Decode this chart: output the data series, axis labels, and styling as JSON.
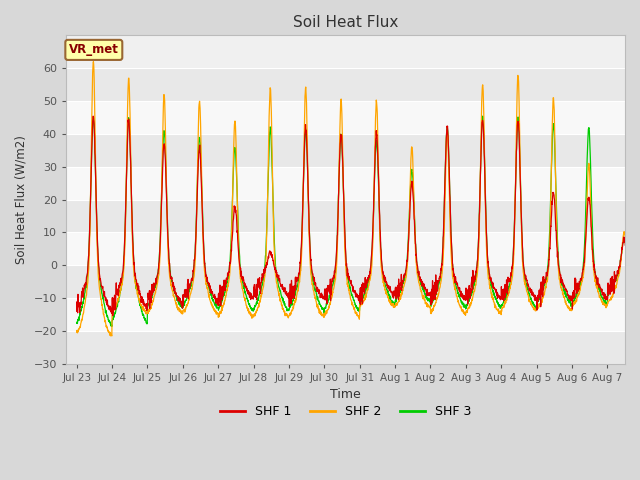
{
  "title": "Soil Heat Flux",
  "ylabel": "Soil Heat Flux (W/m2)",
  "xlabel": "Time",
  "ylim": [
    -30,
    70
  ],
  "yticks": [
    -30,
    -20,
    -10,
    0,
    10,
    20,
    30,
    40,
    50,
    60
  ],
  "figure_bg": "#d8d8d8",
  "plot_bg": "#f0f0f0",
  "grid_color": "#ffffff",
  "band_color1": "#e8e8e8",
  "band_color2": "#f8f8f8",
  "colors": {
    "SHF 1": "#dd0000",
    "SHF 2": "#ffa500",
    "SHF 3": "#00cc00"
  },
  "legend_label": "VR_met",
  "legend_box_facecolor": "#ffffaa",
  "legend_box_edgecolor": "#996633",
  "day_labels": [
    "Jul 23",
    "Jul 24",
    "Jul 25",
    "Jul 26",
    "Jul 27",
    "Jul 28",
    "Jul 29",
    "Jul 30",
    "Jul 31",
    "Aug 1",
    "Aug 2",
    "Aug 3",
    "Aug 4",
    "Aug 5",
    "Aug 6",
    "Aug 7"
  ],
  "shf2_peaks": [
    62,
    57,
    52,
    50,
    44,
    54,
    54,
    50,
    50,
    36,
    41,
    55,
    58,
    51,
    31,
    10
  ],
  "shf3_peaks": [
    45,
    45,
    41,
    39,
    36,
    42,
    41,
    40,
    38,
    29,
    42,
    45,
    45,
    43,
    42,
    8
  ],
  "shf1_peaks": [
    45,
    44,
    37,
    36,
    18,
    4,
    42,
    40,
    40,
    25,
    42,
    44,
    44,
    22,
    21,
    8
  ],
  "shf2_troughs": [
    -22,
    -15,
    -15,
    -15,
    -16,
    -16,
    -16,
    -16,
    -13,
    -13,
    -15,
    -15,
    -14,
    -14,
    -13,
    -12
  ],
  "shf3_troughs": [
    -20,
    -19,
    -14,
    -14,
    -15,
    -15,
    -15,
    -15,
    -13,
    -12,
    -14,
    -14,
    -14,
    -13,
    -13,
    -10
  ],
  "shf1_troughs": [
    -15,
    -14,
    -13,
    -12,
    -11,
    -10,
    -11,
    -11,
    -10,
    -10,
    -11,
    -11,
    -11,
    -11,
    -11,
    -9
  ],
  "pts_per_day": 144,
  "n_days": 16
}
